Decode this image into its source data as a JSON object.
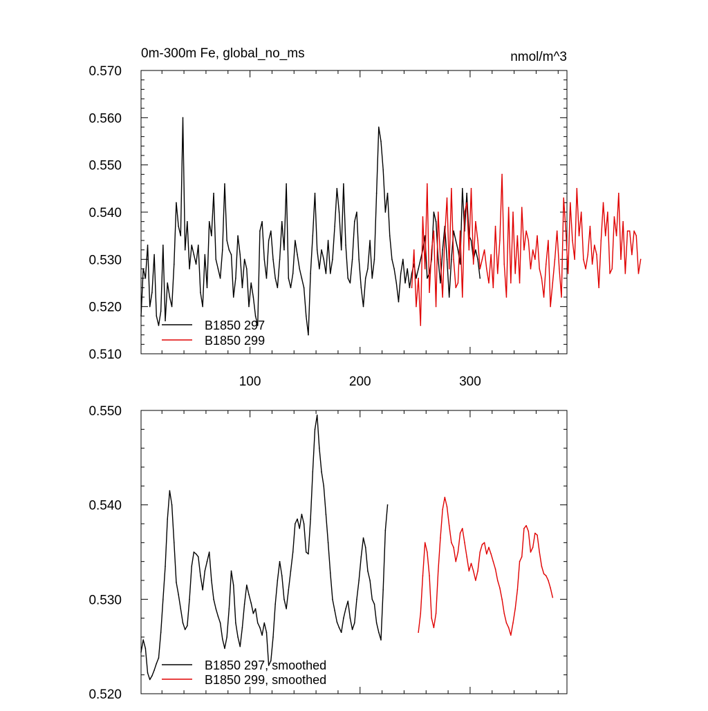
{
  "chart_data": [
    {
      "type": "line",
      "title": "0m-300m Fe, global_no_ms",
      "units": "nmol/m^3",
      "xlim": [
        1,
        388
      ],
      "ylim": [
        0.51,
        0.57
      ],
      "xticks": [
        100,
        200,
        300
      ],
      "xtick_labels": [
        "100",
        "200",
        "300"
      ],
      "yticks": [
        0.51,
        0.52,
        0.53,
        0.54,
        0.55,
        0.56,
        0.57
      ],
      "ytick_labels": [
        "0.510",
        "0.520",
        "0.530",
        "0.540",
        "0.550",
        "0.560",
        "0.570"
      ],
      "grid": false,
      "legend_position": "bottom-left",
      "series": [
        {
          "name": "B1850 297",
          "color": "#000000",
          "x_start": 1,
          "x_step": 2,
          "values": [
            0.518,
            0.528,
            0.526,
            0.533,
            0.52,
            0.523,
            0.531,
            0.518,
            0.516,
            0.519,
            0.533,
            0.517,
            0.525,
            0.522,
            0.52,
            0.529,
            0.542,
            0.537,
            0.535,
            0.56,
            0.532,
            0.538,
            0.528,
            0.533,
            0.531,
            0.529,
            0.533,
            0.523,
            0.52,
            0.531,
            0.524,
            0.538,
            0.535,
            0.544,
            0.53,
            0.528,
            0.526,
            0.532,
            0.546,
            0.534,
            0.532,
            0.531,
            0.522,
            0.526,
            0.535,
            0.531,
            0.524,
            0.53,
            0.528,
            0.52,
            0.525,
            0.522,
            0.518,
            0.516,
            0.536,
            0.538,
            0.53,
            0.526,
            0.534,
            0.536,
            0.53,
            0.526,
            0.524,
            0.53,
            0.538,
            0.532,
            0.546,
            0.526,
            0.524,
            0.527,
            0.534,
            0.531,
            0.528,
            0.526,
            0.524,
            0.518,
            0.514,
            0.527,
            0.535,
            0.544,
            0.532,
            0.528,
            0.532,
            0.53,
            0.527,
            0.534,
            0.527,
            0.53,
            0.537,
            0.545,
            0.54,
            0.532,
            0.546,
            0.533,
            0.526,
            0.525,
            0.53,
            0.538,
            0.54,
            0.53,
            0.524,
            0.52,
            0.526,
            0.528,
            0.534,
            0.526,
            0.53,
            0.544,
            0.558,
            0.555,
            0.549,
            0.54,
            0.544,
            0.535,
            0.53,
            0.528,
            0.525,
            0.521,
            0.527,
            0.53,
            0.525,
            0.528,
            0.524,
            0.527,
            0.529,
            0.526,
            0.528,
            0.53,
            0.532,
            0.535,
            0.526,
            0.527,
            0.53,
            0.54,
            0.538,
            0.53,
            0.525,
            0.532,
            0.537,
            0.53,
            0.522,
            0.53,
            0.536,
            0.534,
            0.532,
            0.529,
            0.545,
            0.536,
            0.544,
            0.535,
            0.534,
            0.53,
            0.532,
            0.53,
            0.526
          ]
        },
        {
          "name": "B1850 299",
          "color": "#e00000",
          "x_start": 247,
          "x_step": 2,
          "values": [
            0.524,
            0.532,
            0.52,
            0.526,
            0.516,
            0.539,
            0.528,
            0.546,
            0.523,
            0.532,
            0.536,
            0.52,
            0.54,
            0.53,
            0.522,
            0.535,
            0.543,
            0.528,
            0.545,
            0.53,
            0.524,
            0.525,
            0.536,
            0.522,
            0.54,
            0.542,
            0.532,
            0.545,
            0.529,
            0.538,
            0.534,
            0.528,
            0.53,
            0.532,
            0.528,
            0.525,
            0.531,
            0.524,
            0.537,
            0.527,
            0.534,
            0.548,
            0.529,
            0.522,
            0.541,
            0.525,
            0.54,
            0.527,
            0.535,
            0.525,
            0.541,
            0.532,
            0.536,
            0.534,
            0.528,
            0.532,
            0.53,
            0.535,
            0.528,
            0.526,
            0.522,
            0.529,
            0.534,
            0.52,
            0.525,
            0.53,
            0.536,
            0.528,
            0.522,
            0.543,
            0.536,
            0.527,
            0.542,
            0.534,
            0.53,
            0.545,
            0.535,
            0.54,
            0.53,
            0.528,
            0.531,
            0.537,
            0.529,
            0.533,
            0.531,
            0.524,
            0.534,
            0.542,
            0.535,
            0.54,
            0.527,
            0.528,
            0.539,
            0.535,
            0.544,
            0.53,
            0.538,
            0.527,
            0.536,
            0.536,
            0.531,
            0.536,
            0.535,
            0.527,
            0.53
          ]
        }
      ]
    },
    {
      "type": "line",
      "xlim": [
        1,
        388
      ],
      "ylim": [
        0.52,
        0.55
      ],
      "yticks": [
        0.52,
        0.53,
        0.54,
        0.55
      ],
      "ytick_labels": [
        "0.520",
        "0.530",
        "0.540",
        "0.550"
      ],
      "grid": false,
      "legend_position": "bottom-left",
      "series": [
        {
          "name": "B1850 297, smoothed",
          "color": "#000000",
          "x_start": 1,
          "x_step": 2,
          "values": [
            0.5244,
            0.5257,
            0.5248,
            0.5222,
            0.5215,
            0.5219,
            0.5225,
            0.5232,
            0.5238,
            0.5265,
            0.53,
            0.5335,
            0.5385,
            0.5415,
            0.54,
            0.536,
            0.5318,
            0.5305,
            0.529,
            0.5275,
            0.5268,
            0.5272,
            0.53,
            0.5335,
            0.535,
            0.5348,
            0.5345,
            0.5325,
            0.531,
            0.533,
            0.534,
            0.535,
            0.532,
            0.53,
            0.529,
            0.5282,
            0.5275,
            0.5258,
            0.5248,
            0.526,
            0.529,
            0.533,
            0.5315,
            0.5275,
            0.526,
            0.525,
            0.527,
            0.5295,
            0.5315,
            0.5305,
            0.5296,
            0.5285,
            0.529,
            0.5275,
            0.527,
            0.5262,
            0.5275,
            0.5265,
            0.523,
            0.5235,
            0.526,
            0.5295,
            0.532,
            0.534,
            0.5325,
            0.53,
            0.529,
            0.531,
            0.533,
            0.535,
            0.538,
            0.5385,
            0.5375,
            0.539,
            0.538,
            0.535,
            0.5348,
            0.5385,
            0.5435,
            0.548,
            0.5495,
            0.546,
            0.5435,
            0.542,
            0.539,
            0.536,
            0.5328,
            0.53,
            0.5288,
            0.5276,
            0.527,
            0.5265,
            0.528,
            0.529,
            0.5298,
            0.528,
            0.5268,
            0.5275,
            0.53,
            0.532,
            0.5345,
            0.5365,
            0.5355,
            0.533,
            0.532,
            0.53,
            0.5295,
            0.5275,
            0.5265,
            0.5257,
            0.531,
            0.5373,
            0.54
          ]
        },
        {
          "name": "B1850 299, smoothed",
          "color": "#e00000",
          "x_start": 253,
          "x_step": 2,
          "values": [
            0.5265,
            0.5285,
            0.5325,
            0.536,
            0.535,
            0.5325,
            0.528,
            0.527,
            0.5285,
            0.533,
            0.5365,
            0.5395,
            0.5408,
            0.5398,
            0.5378,
            0.536,
            0.5355,
            0.534,
            0.535,
            0.537,
            0.5375,
            0.536,
            0.5345,
            0.533,
            0.5338,
            0.533,
            0.532,
            0.533,
            0.535,
            0.5358,
            0.536,
            0.5348,
            0.5355,
            0.5348,
            0.534,
            0.5332,
            0.532,
            0.5312,
            0.53,
            0.5285,
            0.5275,
            0.527,
            0.5262,
            0.5275,
            0.529,
            0.531,
            0.534,
            0.5345,
            0.5375,
            0.5378,
            0.5372,
            0.535,
            0.5355,
            0.537,
            0.5368,
            0.535,
            0.5335,
            0.5327,
            0.5325,
            0.532,
            0.5312,
            0.5302
          ]
        }
      ]
    }
  ]
}
